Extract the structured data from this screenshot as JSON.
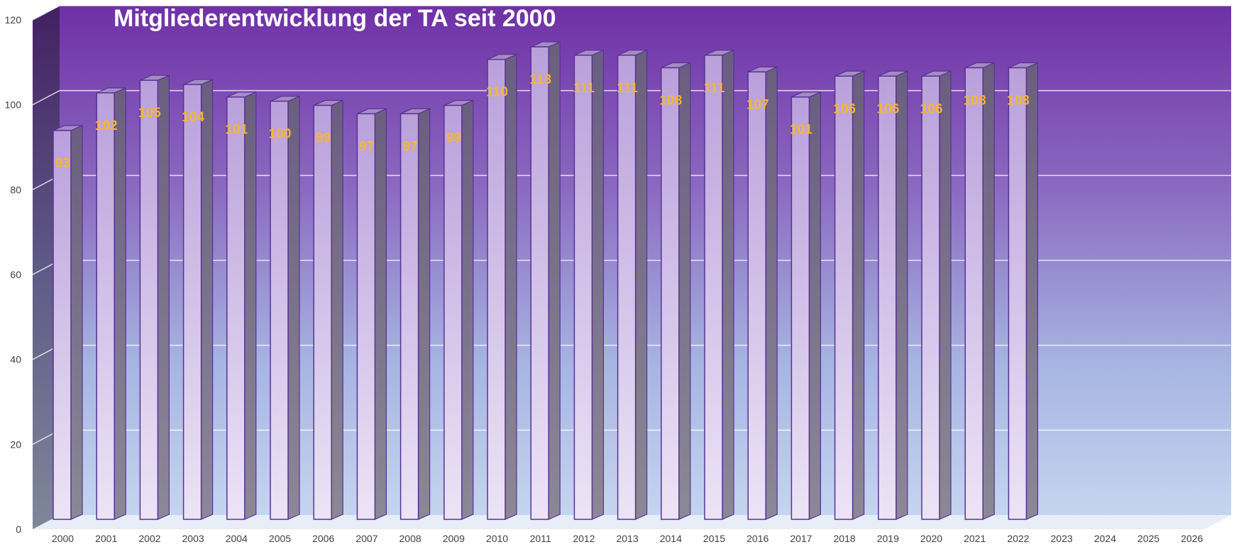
{
  "chart_data": {
    "type": "bar",
    "title": "Mitgliederentwicklung der TA seit 2000",
    "xlabel": "",
    "ylabel": "",
    "categories": [
      "2000",
      "2001",
      "2002",
      "2003",
      "2004",
      "2005",
      "2006",
      "2007",
      "2008",
      "2009",
      "2010",
      "2011",
      "2012",
      "2013",
      "2014",
      "2015",
      "2016",
      "2017",
      "2018",
      "2019",
      "2020",
      "2021",
      "2022",
      "2023",
      "2024",
      "2025",
      "2026"
    ],
    "values": [
      93,
      102,
      105,
      104,
      101,
      100,
      99,
      97,
      97,
      99,
      110,
      113,
      111,
      111,
      108,
      111,
      107,
      101,
      106,
      106,
      106,
      108,
      108,
      null,
      null,
      null,
      null
    ],
    "ylim": [
      0,
      120
    ],
    "yticks": [
      0,
      20,
      40,
      60,
      80,
      100,
      120
    ],
    "grid": true,
    "legend": "none",
    "data_labels": true,
    "colors": {
      "bar_front_top": "#b9a0db",
      "bar_front_bottom": "#ece4f6",
      "bar_side": "#6e6683",
      "bar_edge": "#5a3195",
      "label": "#f6b633",
      "wall_top": "#6f30a6",
      "wall_bottom": "#c5d5ef",
      "title": "#ffffff"
    }
  }
}
